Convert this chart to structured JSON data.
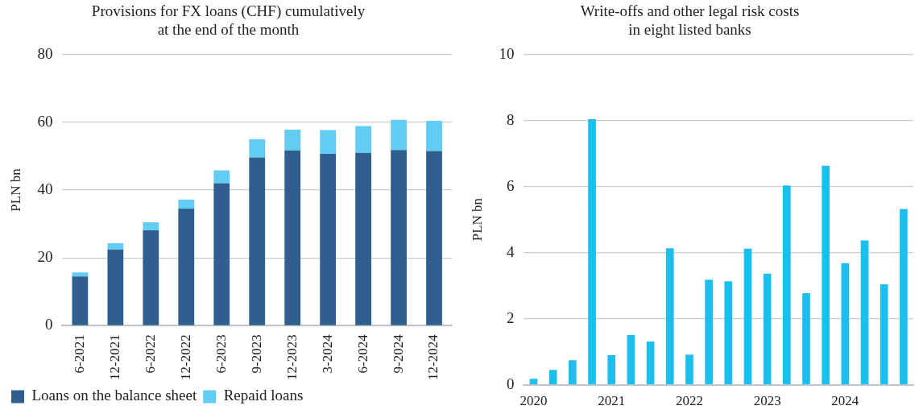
{
  "chart_data": [
    {
      "type": "bar",
      "title": "Provisions for FX loans (CHF) cumulatively\nat the end of the month",
      "ylabel": "PLN bn",
      "categories": [
        "6-2021",
        "12-2021",
        "6-2022",
        "12-2022",
        "6-2023",
        "9-2023",
        "12-2023",
        "3-2024",
        "6-2024",
        "9-2024",
        "12-2024"
      ],
      "stacked": true,
      "ylim": [
        0,
        80
      ],
      "yticks": [
        0,
        20,
        40,
        60,
        80
      ],
      "grid": "y",
      "legend": "bottom",
      "series": [
        {
          "name": "Loans on the balance sheet",
          "color": "#2e5f8f",
          "values": [
            14.5,
            22.5,
            28.1,
            34.5,
            42.0,
            49.6,
            51.7,
            50.7,
            51.0,
            51.8,
            51.5
          ]
        },
        {
          "name": "Repaid loans",
          "color": "#62cdf3",
          "values": [
            1.2,
            1.8,
            2.4,
            2.7,
            3.8,
            5.4,
            6.1,
            7.0,
            7.9,
            8.9,
            8.9
          ]
        }
      ]
    },
    {
      "type": "bar",
      "title": "Write-offs and other legal risk costs\nin eight listed banks",
      "ylabel": "PLN bn",
      "categories": [
        "2020",
        null,
        null,
        null,
        "2021",
        null,
        null,
        null,
        "2022",
        null,
        null,
        null,
        "2023",
        null,
        null,
        null,
        "2024",
        null,
        null,
        null
      ],
      "ylim": [
        0,
        10
      ],
      "yticks": [
        0,
        2,
        4,
        6,
        8,
        10
      ],
      "grid": "y",
      "series": [
        {
          "color": "#1abfee",
          "values": [
            0.18,
            0.45,
            0.74,
            8.04,
            0.89,
            1.5,
            1.31,
            4.13,
            0.91,
            3.18,
            3.13,
            4.12,
            3.36,
            6.03,
            2.77,
            6.63,
            3.68,
            4.37,
            3.04,
            5.32
          ]
        }
      ]
    }
  ]
}
